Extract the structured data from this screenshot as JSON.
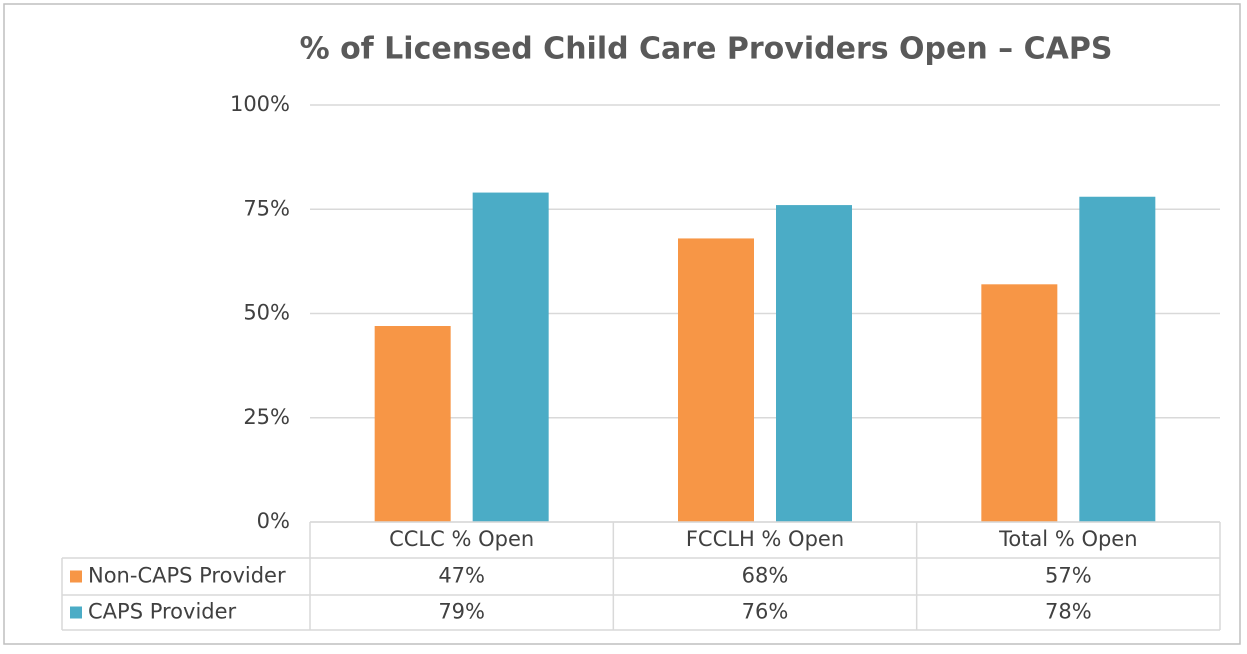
{
  "chart_data": {
    "type": "bar",
    "title": "% of Licensed Child Care Providers Open – CAPS",
    "categories": [
      "CCLC % Open",
      "FCCLH % Open",
      "Total % Open"
    ],
    "series": [
      {
        "name": "Non-CAPS Provider",
        "color": "#f79646",
        "values": [
          47,
          68,
          57
        ],
        "value_labels": [
          "47%",
          "68%",
          "57%"
        ]
      },
      {
        "name": "CAPS Provider",
        "color": "#4bacc6",
        "values": [
          79,
          76,
          78
        ],
        "value_labels": [
          "79%",
          "76%",
          "78%"
        ]
      }
    ],
    "ylim": [
      0,
      100
    ],
    "yticks": [
      {
        "value": 0,
        "label": "0%"
      },
      {
        "value": 25,
        "label": "25%"
      },
      {
        "value": 50,
        "label": "50%"
      },
      {
        "value": 75,
        "label": "75%"
      },
      {
        "value": 100,
        "label": "100%"
      }
    ],
    "grid": true
  }
}
